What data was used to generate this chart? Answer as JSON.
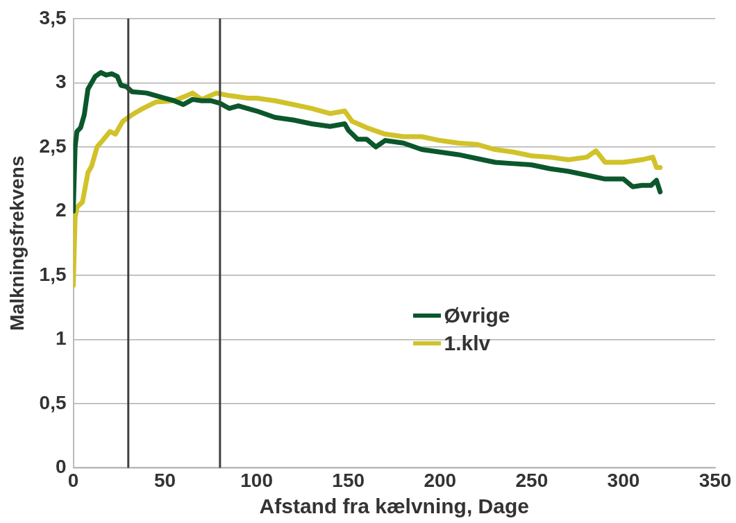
{
  "chart_data": {
    "type": "line",
    "xlabel": "Afstand fra kælvning, Dage",
    "ylabel": "Malkningsfrekvens",
    "xlim": [
      0,
      350
    ],
    "xticks": [
      0,
      50,
      100,
      150,
      200,
      250,
      300,
      350
    ],
    "ylim": [
      0,
      3.5
    ],
    "yticks": [
      {
        "value": 0,
        "label": "0"
      },
      {
        "value": 0.5,
        "label": "0,5"
      },
      {
        "value": 1,
        "label": "1"
      },
      {
        "value": 1.5,
        "label": "1,5"
      },
      {
        "value": 2,
        "label": "2"
      },
      {
        "value": 2.5,
        "label": "2,5"
      },
      {
        "value": 3,
        "label": "3"
      },
      {
        "value": 3.5,
        "label": "3,5"
      }
    ],
    "grid": "y",
    "legend": "right",
    "marker": "none",
    "line_style": "solid",
    "series": [
      {
        "name": "Øvrige",
        "color": "#0b572c",
        "x": [
          0,
          1,
          2,
          4,
          6,
          8,
          10,
          12,
          15,
          18,
          21,
          24,
          26,
          29,
          32,
          40,
          50,
          55,
          60,
          65,
          70,
          75,
          80,
          85,
          90,
          95,
          100,
          110,
          120,
          130,
          140,
          148,
          150,
          155,
          160,
          165,
          170,
          180,
          190,
          200,
          210,
          220,
          230,
          240,
          250,
          260,
          270,
          280,
          290,
          300,
          305,
          310,
          315,
          318,
          320
        ],
        "values": [
          2.0,
          2.5,
          2.62,
          2.65,
          2.75,
          2.95,
          3.0,
          3.05,
          3.08,
          3.06,
          3.07,
          3.05,
          2.98,
          2.97,
          2.93,
          2.92,
          2.88,
          2.86,
          2.83,
          2.87,
          2.86,
          2.86,
          2.84,
          2.8,
          2.82,
          2.8,
          2.78,
          2.73,
          2.71,
          2.68,
          2.66,
          2.68,
          2.63,
          2.56,
          2.56,
          2.5,
          2.55,
          2.53,
          2.48,
          2.46,
          2.44,
          2.41,
          2.38,
          2.37,
          2.36,
          2.33,
          2.31,
          2.28,
          2.25,
          2.25,
          2.19,
          2.2,
          2.2,
          2.24,
          2.15
        ]
      },
      {
        "name": "1.klv",
        "color": "#d1c22a",
        "x": [
          0,
          1,
          2,
          5,
          8,
          10,
          13,
          16,
          20,
          23,
          27,
          32,
          38,
          45,
          55,
          62,
          65,
          70,
          78,
          85,
          95,
          100,
          110,
          120,
          130,
          140,
          148,
          152,
          160,
          170,
          180,
          190,
          200,
          210,
          220,
          230,
          240,
          250,
          260,
          270,
          280,
          285,
          290,
          300,
          310,
          316,
          318,
          320
        ],
        "values": [
          1.42,
          1.95,
          2.03,
          2.07,
          2.3,
          2.35,
          2.5,
          2.55,
          2.62,
          2.6,
          2.7,
          2.75,
          2.8,
          2.85,
          2.86,
          2.9,
          2.92,
          2.87,
          2.92,
          2.9,
          2.88,
          2.88,
          2.86,
          2.83,
          2.8,
          2.76,
          2.78,
          2.7,
          2.65,
          2.6,
          2.58,
          2.58,
          2.55,
          2.53,
          2.52,
          2.48,
          2.46,
          2.43,
          2.42,
          2.4,
          2.42,
          2.47,
          2.38,
          2.38,
          2.4,
          2.42,
          2.34,
          2.34
        ]
      }
    ],
    "ref_lines": [
      {
        "axis": "x",
        "value": 30,
        "color": "#404040"
      },
      {
        "axis": "x",
        "value": 80,
        "color": "#404040"
      }
    ]
  }
}
